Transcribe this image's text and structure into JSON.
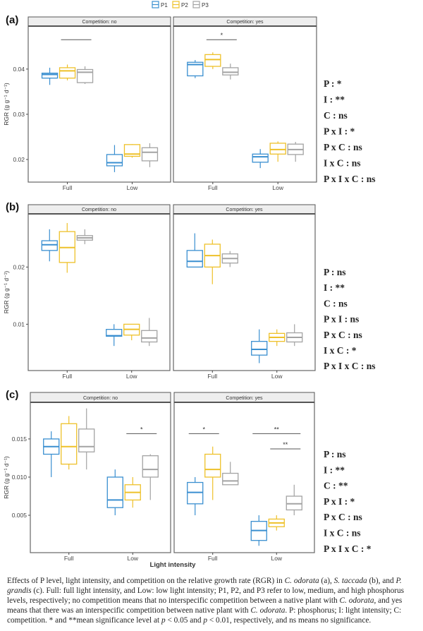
{
  "legend": {
    "items": [
      {
        "label": "P1",
        "color": "#3a8fd0"
      },
      {
        "label": "P2",
        "color": "#eec12a"
      },
      {
        "label": "P3",
        "color": "#a3a3a3"
      }
    ]
  },
  "xlabel": "Light intensity",
  "ylabel": "RGR (g g⁻¹ d⁻¹)",
  "chart_data": [
    {
      "type": "boxplot",
      "label": "(a)",
      "yticks": [
        0.02,
        0.03,
        0.04
      ],
      "ytick_labels": [
        "0.02",
        "0.03",
        "0.04"
      ],
      "ylim": [
        0.015,
        0.0495
      ],
      "categories": [
        "Full",
        "Low"
      ],
      "panels": [
        {
          "facet": "Competition: no",
          "boxes": {
            "Full": [
              [
                0.0365,
                0.038,
                0.0388,
                0.0391,
                0.0403
              ],
              [
                0.0375,
                0.038,
                0.0396,
                0.0403,
                0.041
              ],
              [
                0.0367,
                0.037,
                0.0393,
                0.0399,
                0.0406
              ]
            ],
            "Low": [
              [
                0.0172,
                0.0186,
                0.0193,
                0.0211,
                0.0232
              ],
              [
                0.0204,
                0.0207,
                0.0212,
                0.0233,
                0.0234
              ],
              [
                0.0183,
                0.0197,
                0.0216,
                0.0226,
                0.0236
              ]
            ]
          },
          "sig": [
            {
              "cat": "Full",
              "from": 1,
              "to": 2,
              "y": 0.0465,
              "label": ""
            }
          ]
        },
        {
          "facet": "Competition: yes",
          "boxes": {
            "Full": [
              [
                0.038,
                0.0385,
                0.041,
                0.0415,
                0.042
              ],
              [
                0.04,
                0.0406,
                0.0421,
                0.0432,
                0.0437
              ],
              [
                0.0377,
                0.0387,
                0.0393,
                0.0403,
                0.0412
              ]
            ],
            "Low": [
              [
                0.0181,
                0.0194,
                0.0206,
                0.0212,
                0.0223
              ],
              [
                0.0195,
                0.0212,
                0.0222,
                0.0236,
                0.024
              ],
              [
                0.0195,
                0.0211,
                0.0222,
                0.0234,
                0.0239
              ]
            ]
          },
          "sig": [
            {
              "cat": "Full",
              "from": 1,
              "to": 2,
              "y": 0.0465,
              "label": "*"
            }
          ]
        }
      ],
      "stats": [
        "P : *",
        "I : **",
        "C : ns",
        "P x I : *",
        "P x C : ns",
        "I x C : ns",
        "P x I x C : ns"
      ]
    },
    {
      "type": "boxplot",
      "label": "(b)",
      "yticks": [
        0.01,
        0.02
      ],
      "ytick_labels": [
        "0.01",
        "0.02"
      ],
      "ylim": [
        0.0019,
        0.0293
      ],
      "categories": [
        "Full",
        "Low"
      ],
      "panels": [
        {
          "facet": "Competition: no",
          "boxes": {
            "Full": [
              [
                0.021,
                0.0229,
                0.0239,
                0.0246,
                0.0266
              ],
              [
                0.019,
                0.0208,
                0.0234,
                0.0262,
                0.0277
              ],
              [
                0.024,
                0.0247,
                0.0251,
                0.0255,
                0.0266
              ]
            ],
            "Low": [
              [
                0.0062,
                0.0079,
                0.008,
                0.0091,
                0.01
              ],
              [
                0.0072,
                0.0081,
                0.0091,
                0.01,
                0.01
              ],
              [
                0.0062,
                0.0069,
                0.0076,
                0.0089,
                0.0111
              ]
            ]
          },
          "sig": []
        },
        {
          "facet": "Competition: yes",
          "boxes": {
            "Full": [
              [
                0.02,
                0.02,
                0.021,
                0.0229,
                0.0259
              ],
              [
                0.017,
                0.02,
                0.022,
                0.024,
                0.0248
              ],
              [
                0.02,
                0.0207,
                0.0215,
                0.0223,
                0.0228
              ]
            ],
            "Low": [
              [
                0.0032,
                0.0046,
                0.0056,
                0.007,
                0.0091
              ],
              [
                0.0062,
                0.007,
                0.0077,
                0.0084,
                0.0091
              ],
              [
                0.0062,
                0.0069,
                0.0077,
                0.0085,
                0.01
              ]
            ]
          },
          "sig": []
        }
      ],
      "stats": [
        "P : ns",
        "I : **",
        "C : ns",
        "P x I : ns",
        "P x C : ns",
        "I x C : *",
        "P x I x C : ns"
      ]
    },
    {
      "type": "boxplot",
      "label": "(c)",
      "yticks": [
        0.005,
        0.01,
        0.015
      ],
      "ytick_labels": [
        "0.005",
        "0.010",
        "0.015"
      ],
      "ylim": [
        0.0001,
        0.0198
      ],
      "categories": [
        "Full",
        "Low"
      ],
      "panels": [
        {
          "facet": "Competition: no",
          "boxes": {
            "Full": [
              [
                0.01,
                0.013,
                0.014,
                0.015,
                0.016
              ],
              [
                0.011,
                0.0117,
                0.014,
                0.017,
                0.018
              ],
              [
                0.011,
                0.0133,
                0.014,
                0.0163,
                0.019
              ]
            ],
            "Low": [
              [
                0.005,
                0.006,
                0.007,
                0.01,
                0.011
              ],
              [
                0.006,
                0.007,
                0.008,
                0.009,
                0.01
              ],
              [
                0.007,
                0.01,
                0.011,
                0.0128,
                0.013
              ]
            ]
          },
          "sig": [
            {
              "cat": "Low",
              "from": 1,
              "to": 2,
              "y": 0.0157,
              "label": "*"
            }
          ]
        },
        {
          "facet": "Competition: yes",
          "boxes": {
            "Full": [
              [
                0.005,
                0.0065,
                0.008,
                0.0093,
                0.01
              ],
              [
                0.007,
                0.01,
                0.011,
                0.013,
                0.014
              ],
              [
                0.009,
                0.009,
                0.0095,
                0.0105,
                0.012
              ]
            ],
            "Low": [
              [
                0.001,
                0.0017,
                0.003,
                0.0042,
                0.005
              ],
              [
                0.003,
                0.0035,
                0.004,
                0.0045,
                0.005
              ],
              [
                0.005,
                0.0057,
                0.0065,
                0.0075,
                0.009
              ]
            ]
          },
          "sig": [
            {
              "cat": "Full",
              "from": 0,
              "to": 1,
              "y": 0.0157,
              "label": "*"
            },
            {
              "cat": "Low",
              "from": 0,
              "to": 2,
              "y": 0.0157,
              "label": "**"
            },
            {
              "cat": "Low",
              "from": 1,
              "to": 2,
              "y": 0.0137,
              "label": "**"
            }
          ]
        }
      ],
      "stats": [
        "P : ns",
        "I : **",
        "C : **",
        "P x I : *",
        "P x C : ns",
        "I x C : ns",
        "P x I x C : *"
      ]
    }
  ],
  "caption": [
    {
      "t": "Effects of P level, light intensity, and competition on the relative growth rate (RGR) in "
    },
    {
      "t": "C. odorata",
      "i": true
    },
    {
      "t": " (a), "
    },
    {
      "t": "S. taccada",
      "i": true
    },
    {
      "t": " (b), and "
    },
    {
      "t": "P. grandis",
      "i": true
    },
    {
      "t": " (c). Full: full light intensity, and Low: low light intensity; P1, P2, and P3 refer to low, medium, and high phosphorus levels, respectively; no competition means that no interspecific competition between a native plant with "
    },
    {
      "t": "C. odorata",
      "i": true
    },
    {
      "t": ", and yes means that there was an interspecific competition between native plant with "
    },
    {
      "t": "C. odorata",
      "i": true
    },
    {
      "t": ". P: phosphorus; I: light intensity; C: competition. * and **mean significance level at "
    },
    {
      "t": "p",
      "i": true
    },
    {
      "t": " < 0.05 and "
    },
    {
      "t": "p",
      "i": true
    },
    {
      "t": " < 0.01, respectively, and ns means no significance."
    }
  ]
}
